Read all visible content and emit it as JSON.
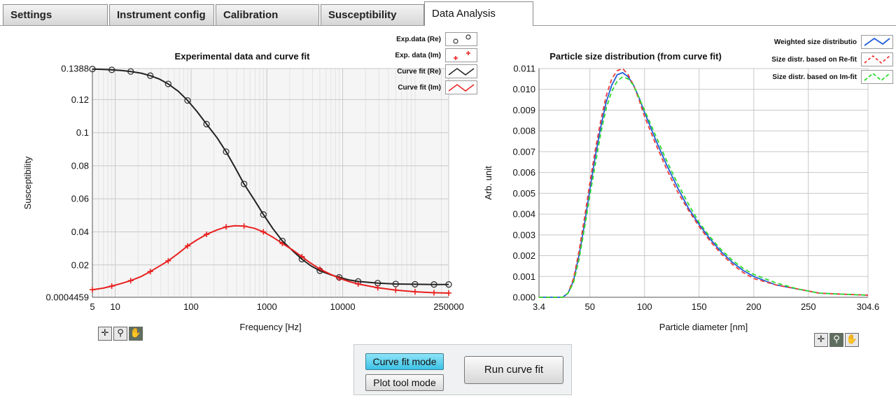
{
  "tabs": [
    {
      "label": "Settings",
      "active": false
    },
    {
      "label": "Instrument config",
      "active": false
    },
    {
      "label": "Calibration",
      "active": false
    },
    {
      "label": "Susceptibility",
      "active": false
    },
    {
      "label": "Data Analysis",
      "active": true
    }
  ],
  "legend_left": [
    {
      "label": "Exp.data (Re)",
      "kind": "circle",
      "color": "#333333"
    },
    {
      "label": "Exp. data (Im)",
      "kind": "plus",
      "color": "#e8201f"
    },
    {
      "label": "Curve fit (Re)",
      "kind": "line",
      "color": "#222222"
    },
    {
      "label": "Curve fit (Im)",
      "kind": "line",
      "color": "#e8201f"
    }
  ],
  "legend_right": [
    {
      "label": "Weighted size distributio",
      "kind": "line",
      "color": "#1f5fd6"
    },
    {
      "label": "Size distr. based on Re-fit",
      "kind": "dash",
      "color": "#ee3b3b"
    },
    {
      "label": "Size distr. based on Im-fit",
      "kind": "dash",
      "color": "#2edc2e"
    }
  ],
  "mode": {
    "curve_fit_label": "Curve fit mode",
    "plot_tool_label": "Plot tool mode",
    "run_label": "Run curve fit"
  },
  "tool_glyphs": [
    "✛",
    "⚲",
    "✋"
  ],
  "chart_data": [
    {
      "type": "line",
      "title": "Experimental data and curve fit",
      "xlabel": "Frequency [Hz]",
      "ylabel": "Susceptibility",
      "x_scale": "log",
      "xlim": [
        5,
        250000
      ],
      "ylim": [
        0.0004459,
        0.1388
      ],
      "x_ticks": [
        5,
        10,
        100,
        1000,
        10000,
        250000
      ],
      "x_tick_labels": [
        "5",
        "10",
        "100",
        "1000",
        "10000",
        "250000"
      ],
      "y_ticks": [
        0.0004459,
        0.02,
        0.04,
        0.06,
        0.08,
        0.1,
        0.12,
        0.1388
      ],
      "y_tick_labels": [
        "0.0004459",
        "0.02",
        "0.04",
        "0.06",
        "0.08",
        "0.1",
        "0.12",
        "0.1388"
      ],
      "grid": true,
      "legend": "top-right outside",
      "series": [
        {
          "name": "Exp.data (Re)",
          "style": "markers-circle",
          "color": "#333333",
          "x": [
            5,
            9,
            16,
            29,
            50,
            90,
            160,
            290,
            500,
            900,
            1600,
            2900,
            5000,
            9000,
            16000,
            29000,
            50000,
            90000,
            160000,
            250000
          ],
          "y": [
            0.1385,
            0.138,
            0.137,
            0.1345,
            0.1295,
            0.1195,
            0.1052,
            0.0885,
            0.069,
            0.0505,
            0.0345,
            0.0235,
            0.0165,
            0.0125,
            0.01,
            0.009,
            0.0085,
            0.0083,
            0.0082,
            0.0082
          ]
        },
        {
          "name": "Exp. data (Im)",
          "style": "markers-plus",
          "color": "#e8201f",
          "x": [
            5,
            9,
            16,
            29,
            50,
            90,
            160,
            290,
            500,
            900,
            1600,
            2900,
            5000,
            9000,
            16000,
            29000,
            50000,
            90000,
            160000,
            250000
          ],
          "y": [
            0.005,
            0.0072,
            0.0105,
            0.016,
            0.0225,
            0.0315,
            0.0385,
            0.043,
            0.0435,
            0.04,
            0.033,
            0.025,
            0.0175,
            0.012,
            0.0085,
            0.0062,
            0.0048,
            0.0038,
            0.0032,
            0.003
          ]
        },
        {
          "name": "Curve fit (Re)",
          "style": "line",
          "color": "#222222",
          "x": [
            5,
            7,
            9,
            12,
            16,
            22,
            29,
            38,
            50,
            68,
            90,
            120,
            160,
            220,
            290,
            380,
            500,
            680,
            900,
            1200,
            1600,
            2200,
            2900,
            3800,
            5000,
            6800,
            9000,
            12000,
            16000,
            29000,
            50000,
            90000,
            160000,
            250000
          ],
          "y": [
            0.1385,
            0.1383,
            0.138,
            0.1376,
            0.137,
            0.136,
            0.1345,
            0.1325,
            0.1295,
            0.125,
            0.1195,
            0.1128,
            0.1052,
            0.097,
            0.0885,
            0.079,
            0.069,
            0.0595,
            0.0505,
            0.042,
            0.0345,
            0.0285,
            0.0235,
            0.0195,
            0.0165,
            0.0142,
            0.0125,
            0.011,
            0.01,
            0.009,
            0.0085,
            0.0083,
            0.0082,
            0.0082
          ]
        },
        {
          "name": "Curve fit (Im)",
          "style": "line",
          "color": "#e8201f",
          "x": [
            5,
            7,
            9,
            12,
            16,
            22,
            29,
            38,
            50,
            68,
            90,
            120,
            160,
            220,
            290,
            380,
            500,
            680,
            900,
            1200,
            1600,
            2200,
            2900,
            3800,
            5000,
            6800,
            9000,
            12000,
            16000,
            29000,
            50000,
            90000,
            160000,
            250000
          ],
          "y": [
            0.005,
            0.006,
            0.0072,
            0.0088,
            0.0105,
            0.013,
            0.016,
            0.0192,
            0.0225,
            0.027,
            0.0315,
            0.0352,
            0.0385,
            0.0412,
            0.043,
            0.0437,
            0.0435,
            0.0422,
            0.04,
            0.0368,
            0.033,
            0.029,
            0.025,
            0.021,
            0.0175,
            0.0145,
            0.012,
            0.01,
            0.0085,
            0.0062,
            0.0048,
            0.0038,
            0.0032,
            0.003
          ]
        }
      ]
    },
    {
      "type": "line",
      "title": "Particle size distribution (from curve fit)",
      "xlabel": "Particle diameter [nm]",
      "ylabel": "Arb. unit",
      "xlim": [
        3.4,
        304.6
      ],
      "ylim": [
        0,
        0.011
      ],
      "x_ticks": [
        3.4,
        50,
        100,
        150,
        200,
        250,
        304.6
      ],
      "x_tick_labels": [
        "3.4",
        "50",
        "100",
        "150",
        "200",
        "250",
        "304.6"
      ],
      "y_ticks": [
        0,
        0.001,
        0.002,
        0.003,
        0.004,
        0.005,
        0.006,
        0.007,
        0.008,
        0.009,
        0.01,
        0.011
      ],
      "y_tick_labels": [
        "0.000",
        "0.001",
        "0.002",
        "0.003",
        "0.004",
        "0.005",
        "0.006",
        "0.007",
        "0.008",
        "0.009",
        "0.010",
        "0.011"
      ],
      "grid": true,
      "legend": "top-right",
      "series": [
        {
          "name": "Weighted size distributio",
          "style": "solid",
          "color": "#1f5fd6",
          "x": [
            3.4,
            15,
            25,
            30,
            35,
            40,
            45,
            50,
            55,
            60,
            65,
            70,
            75,
            80,
            85,
            90,
            95,
            100,
            110,
            120,
            130,
            140,
            150,
            160,
            170,
            180,
            190,
            200,
            220,
            240,
            260,
            280,
            304.6
          ],
          "y": [
            0,
            0,
            0,
            0.0002,
            0.0008,
            0.002,
            0.0035,
            0.0052,
            0.0068,
            0.0082,
            0.0094,
            0.0102,
            0.0107,
            0.0108,
            0.0106,
            0.0102,
            0.0096,
            0.0089,
            0.0076,
            0.0064,
            0.0053,
            0.0043,
            0.0035,
            0.0028,
            0.0022,
            0.0017,
            0.0013,
            0.001,
            0.0006,
            0.0004,
            0.0002,
            0.00015,
            0.0001
          ]
        },
        {
          "name": "Size distr. based on Re-fit",
          "style": "dash",
          "color": "#ee3b3b",
          "x": [
            3.4,
            15,
            25,
            30,
            35,
            40,
            45,
            50,
            55,
            60,
            65,
            70,
            75,
            80,
            85,
            90,
            95,
            100,
            110,
            120,
            130,
            140,
            150,
            160,
            170,
            180,
            190,
            200,
            220,
            240,
            260,
            280,
            304.6
          ],
          "y": [
            0,
            0,
            0,
            0.0002,
            0.0009,
            0.0022,
            0.0038,
            0.0055,
            0.0071,
            0.0085,
            0.0097,
            0.0105,
            0.0109,
            0.011,
            0.0107,
            0.0102,
            0.0095,
            0.0087,
            0.0074,
            0.0062,
            0.0051,
            0.0042,
            0.0034,
            0.0027,
            0.0021,
            0.0016,
            0.0012,
            0.0009,
            0.0006,
            0.0004,
            0.0002,
            0.00015,
            0.0001
          ]
        },
        {
          "name": "Size distr. based on Im-fit",
          "style": "dash",
          "color": "#2edc2e",
          "x": [
            3.4,
            15,
            25,
            30,
            35,
            40,
            45,
            50,
            55,
            60,
            65,
            70,
            75,
            80,
            85,
            90,
            95,
            100,
            110,
            120,
            130,
            140,
            150,
            160,
            170,
            180,
            190,
            200,
            220,
            240,
            260,
            280,
            304.6
          ],
          "y": [
            0,
            0,
            0,
            0.0002,
            0.0007,
            0.0018,
            0.0033,
            0.0049,
            0.0064,
            0.0079,
            0.0091,
            0.0099,
            0.0104,
            0.0106,
            0.0105,
            0.0102,
            0.0096,
            0.009,
            0.0078,
            0.0066,
            0.0055,
            0.0045,
            0.0036,
            0.0029,
            0.0023,
            0.0018,
            0.0014,
            0.0011,
            0.0007,
            0.0004,
            0.0002,
            0.00015,
            0.0001
          ]
        }
      ]
    }
  ]
}
